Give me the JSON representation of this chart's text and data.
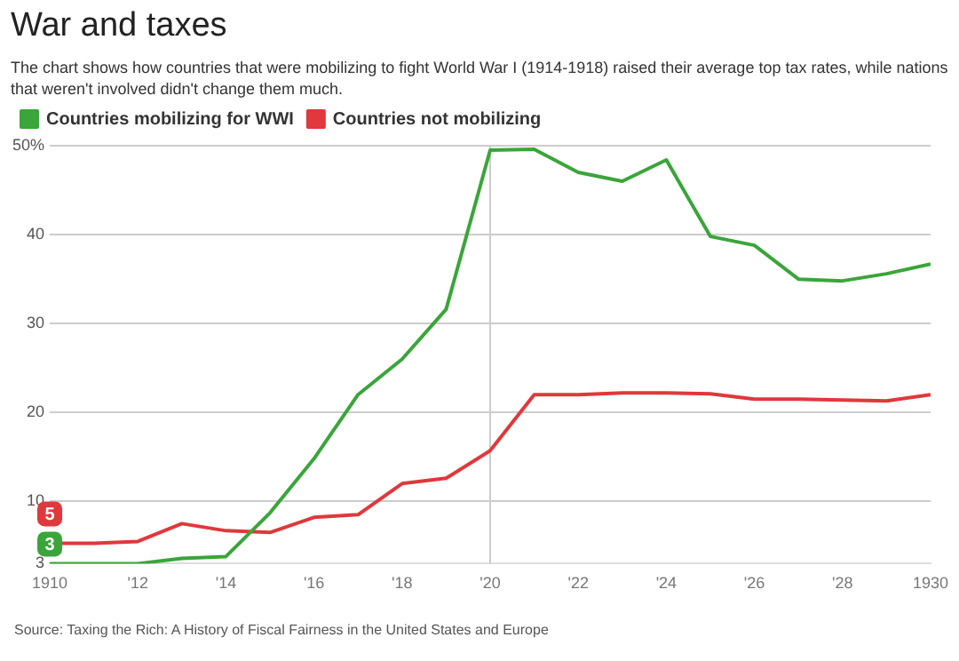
{
  "chart_data": {
    "type": "line",
    "title": "War and taxes",
    "subtitle": "The chart shows how countries that were mobilizing to fight World War I (1914-1918) raised their average top tax rates, while nations that weren't involved didn't change them much.",
    "x": [
      1910,
      1911,
      1912,
      1913,
      1914,
      1915,
      1916,
      1917,
      1918,
      1919,
      1920,
      1921,
      1922,
      1923,
      1924,
      1925,
      1926,
      1927,
      1928,
      1929,
      1930
    ],
    "series": [
      {
        "name": "Countries mobilizing for WWI",
        "color": "#3aa53a",
        "values": [
          3,
          3,
          3,
          3.6,
          3.8,
          8.7,
          14.8,
          22,
          26,
          31.6,
          49.5,
          49.6,
          47,
          46,
          48.4,
          39.8,
          38.8,
          35,
          34.8,
          35.6,
          36.7
        ],
        "value_labels": [
          "3",
          null,
          null,
          null,
          null,
          null,
          null,
          null,
          null,
          null,
          null,
          null,
          null,
          null,
          null,
          null,
          null,
          null,
          null,
          null,
          null
        ]
      },
      {
        "name": "Countries not mobilizing",
        "color": "#e0383c",
        "values": [
          5.3,
          5.3,
          5.5,
          7.5,
          6.7,
          6.5,
          8.2,
          8.5,
          12,
          12.6,
          15.7,
          22,
          22,
          22.2,
          22.2,
          22.1,
          21.5,
          21.5,
          21.4,
          21.3,
          22
        ],
        "value_labels": [
          "5",
          null,
          null,
          null,
          null,
          null,
          null,
          null,
          null,
          null,
          null,
          null,
          null,
          null,
          null,
          null,
          null,
          null,
          null,
          null,
          null
        ]
      }
    ],
    "xlim": [
      1910,
      1930
    ],
    "xticks": [
      1910,
      {
        "value": 1912,
        "label": "'12"
      },
      {
        "value": 1914,
        "label": "'14"
      },
      {
        "value": 1916,
        "label": "'16"
      },
      {
        "value": 1918,
        "label": "'18"
      },
      {
        "value": 1920,
        "label": "'20"
      },
      {
        "value": 1922,
        "label": "'22"
      },
      {
        "value": 1924,
        "label": "'24"
      },
      {
        "value": 1926,
        "label": "'26"
      },
      {
        "value": 1928,
        "label": "'28"
      },
      1930
    ],
    "ylim": [
      3,
      50
    ],
    "yticks": [
      3,
      10,
      20,
      30,
      40,
      {
        "value": 50,
        "label": "50%"
      }
    ],
    "ref_lines": [
      {
        "axis": "x",
        "value": 1920,
        "color": "#cccccc"
      }
    ],
    "grid": "y",
    "legend": "top left",
    "marker": "none",
    "line_style": "solid",
    "annotations": [
      "Source: Taxing the Rich: A History of Fiscal Fairness in the United States and Europe"
    ]
  }
}
